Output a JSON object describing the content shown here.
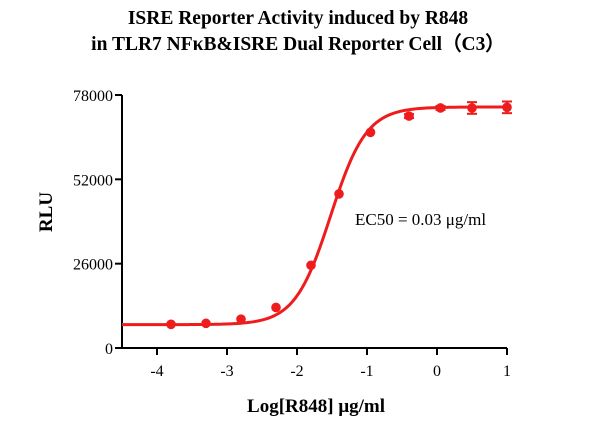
{
  "chart_data": {
    "type": "scatter",
    "title_line1": "ISRE Reporter Activity induced by R848",
    "title_line2": "in TLR7 NFκB&ISRE Dual Reporter Cell（C3）",
    "xlabel": "Log[R848] μg/ml",
    "ylabel": "RLU",
    "xlim": [
      -4.5,
      1
    ],
    "ylim": [
      0,
      78000
    ],
    "x_ticks": [
      -4,
      -3,
      -2,
      -1,
      0,
      1
    ],
    "x_tick_labels": [
      "-4",
      "-3",
      "-2",
      "-1",
      "0",
      "1"
    ],
    "y_ticks": [
      0,
      26000,
      52000,
      78000
    ],
    "y_tick_labels": [
      "0",
      "26000",
      "52000",
      "78000"
    ],
    "annotation": "EC50 = 0.03 μg/ml",
    "color": "#ee1c1c",
    "series": [
      {
        "x": [
          -3.8,
          -3.3,
          -2.8,
          -2.3,
          -1.8,
          -1.4,
          -0.95,
          -0.4,
          0.05,
          0.5,
          1.0
        ],
        "y": [
          7300,
          7600,
          8900,
          12500,
          25500,
          47500,
          66500,
          71500,
          74000,
          74000,
          74200
        ],
        "err": [
          0,
          0,
          0,
          0,
          0,
          0,
          0,
          600,
          600,
          1800,
          1800
        ]
      }
    ],
    "fit_curve": {
      "bottom": 7200,
      "top": 74300,
      "logEC50": -1.52,
      "hill": 1.7
    }
  }
}
